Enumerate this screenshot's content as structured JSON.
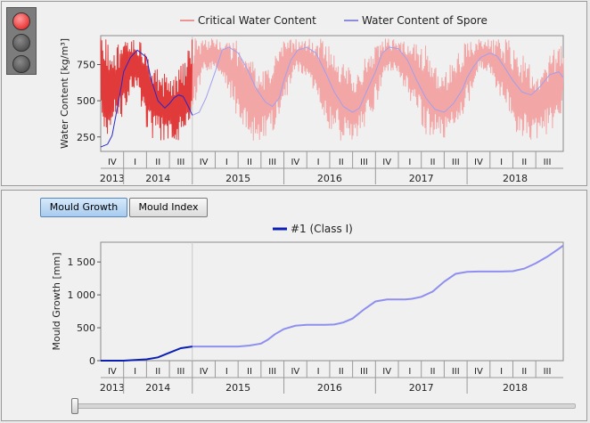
{
  "ui": {
    "tab_growth": "Mould Growth",
    "tab_index": "Mould Index"
  },
  "colors": {
    "critical_active": "#e03a3a",
    "critical_faded": "#f3a6a6",
    "spore_active": "#2828c8",
    "spore_faded": "#a0a0ee",
    "growth_active": "#0b1fb4",
    "growth_faded": "#8f8ff0",
    "grid": "#d4d4d4",
    "plot_bg": "#f0f0f0"
  },
  "chart_data": [
    {
      "type": "line",
      "ylabel": "Water Content [kg/m³]",
      "xlabel": "",
      "ylim": [
        150,
        950
      ],
      "yticks": [
        250,
        500,
        750
      ],
      "grid": false,
      "legend_position": "top-center",
      "x_unit": "quarters since Oct 2013",
      "x_range": [
        0,
        20.2
      ],
      "highlight_until": 4,
      "quarters": [
        "IV",
        "I",
        "II",
        "III",
        "IV",
        "I",
        "II",
        "III",
        "IV",
        "I",
        "II",
        "III",
        "IV",
        "I",
        "II",
        "III",
        "IV",
        "I",
        "II",
        "III"
      ],
      "years": [
        {
          "label": "2013",
          "from": 0,
          "to": 1
        },
        {
          "label": "2014",
          "from": 1,
          "to": 4
        },
        {
          "label": "2015",
          "from": 4,
          "to": 8
        },
        {
          "label": "2016",
          "from": 8,
          "to": 12
        },
        {
          "label": "2017",
          "from": 12,
          "to": 16
        },
        {
          "label": "2018",
          "from": 16,
          "to": 20.2
        }
      ],
      "series": [
        {
          "name": "Critical Water Content",
          "style": "envelope",
          "x": [
            0,
            0.5,
            1,
            1.4,
            1.7,
            2,
            2.3,
            2.7,
            3,
            3.3,
            3.7,
            4,
            4.5,
            5,
            5.5,
            6,
            6.5,
            7,
            7.5,
            8,
            8.5,
            9,
            9.5,
            10,
            10.5,
            11,
            11.5,
            12,
            12.5,
            13,
            13.5,
            14,
            14.5,
            15,
            15.5,
            16,
            16.5,
            17,
            17.5,
            18,
            18.5,
            19,
            19.5,
            20,
            20.2
          ],
          "low": [
            300,
            250,
            400,
            600,
            500,
            300,
            220,
            210,
            210,
            220,
            240,
            400,
            700,
            700,
            600,
            360,
            220,
            220,
            280,
            450,
            700,
            650,
            500,
            300,
            220,
            220,
            300,
            450,
            700,
            680,
            500,
            300,
            220,
            220,
            300,
            450,
            700,
            680,
            500,
            300,
            220,
            220,
            260,
            300,
            400
          ],
          "high": [
            930,
            930,
            930,
            930,
            930,
            930,
            800,
            700,
            650,
            700,
            800,
            930,
            930,
            930,
            930,
            930,
            800,
            700,
            800,
            930,
            930,
            930,
            930,
            930,
            800,
            700,
            800,
            930,
            930,
            930,
            930,
            930,
            800,
            700,
            800,
            930,
            930,
            930,
            930,
            930,
            800,
            700,
            800,
            930,
            930
          ]
        },
        {
          "name": "Water Content of Spore",
          "style": "line",
          "x": [
            0,
            0.3,
            0.5,
            0.7,
            0.9,
            1,
            1.3,
            1.6,
            2,
            2.2,
            2.5,
            2.8,
            3,
            3.2,
            3.4,
            3.6,
            3.8,
            4,
            4.3,
            4.6,
            5,
            5.3,
            5.6,
            6,
            6.4,
            6.8,
            7.2,
            7.5,
            7.8,
            8,
            8.3,
            8.6,
            9,
            9.4,
            9.8,
            10.2,
            10.6,
            11,
            11.3,
            11.6,
            12,
            12.3,
            12.6,
            13,
            13.4,
            13.8,
            14.2,
            14.6,
            15,
            15.4,
            15.8,
            16,
            16.3,
            16.6,
            17,
            17.3,
            17.6,
            18,
            18.4,
            18.8,
            19.2,
            19.6,
            20,
            20.2
          ],
          "y": [
            180,
            200,
            260,
            430,
            600,
            700,
            800,
            850,
            800,
            650,
            500,
            450,
            480,
            520,
            540,
            530,
            470,
            400,
            420,
            520,
            700,
            850,
            870,
            830,
            720,
            580,
            490,
            460,
            520,
            640,
            780,
            850,
            870,
            830,
            700,
            560,
            460,
            420,
            450,
            560,
            700,
            830,
            870,
            860,
            780,
            640,
            520,
            440,
            420,
            480,
            580,
            660,
            740,
            800,
            830,
            810,
            740,
            640,
            560,
            540,
            600,
            680,
            700,
            660
          ]
        }
      ]
    },
    {
      "type": "line",
      "ylabel": "Mould Growth [mm]",
      "xlabel": "",
      "ylim": [
        0,
        1800
      ],
      "yticks": [
        0,
        500,
        1000,
        1500
      ],
      "ytick_labels": [
        "0",
        "500",
        "1 000",
        "1 500"
      ],
      "grid": false,
      "legend_position": "top-center",
      "x_unit": "quarters since Oct 2013",
      "x_range": [
        0,
        20.2
      ],
      "highlight_until": 4,
      "quarters": [
        "IV",
        "I",
        "II",
        "III",
        "IV",
        "I",
        "II",
        "III",
        "IV",
        "I",
        "II",
        "III",
        "IV",
        "I",
        "II",
        "III",
        "IV",
        "I",
        "II",
        "III"
      ],
      "years": [
        {
          "label": "2013",
          "from": 0,
          "to": 1
        },
        {
          "label": "2014",
          "from": 1,
          "to": 4
        },
        {
          "label": "2015",
          "from": 4,
          "to": 8
        },
        {
          "label": "2016",
          "from": 8,
          "to": 12
        },
        {
          "label": "2017",
          "from": 12,
          "to": 16
        },
        {
          "label": "2018",
          "from": 16,
          "to": 20.2
        }
      ],
      "series": [
        {
          "name": "#1 (Class I)",
          "style": "line",
          "x": [
            0,
            1,
            1.5,
            2,
            2.5,
            3,
            3.5,
            4,
            5,
            6,
            6.5,
            7,
            7.3,
            7.6,
            8,
            8.5,
            9,
            9.4,
            9.8,
            10.2,
            10.6,
            11,
            11.5,
            12,
            12.5,
            13,
            13.3,
            13.6,
            14,
            14.5,
            15,
            15.5,
            16,
            16.5,
            17,
            17.5,
            18,
            18.5,
            19,
            19.5,
            20,
            20.2
          ],
          "y": [
            0,
            0,
            10,
            20,
            50,
            120,
            190,
            215,
            215,
            215,
            230,
            260,
            320,
            400,
            480,
            530,
            545,
            545,
            545,
            550,
            580,
            640,
            780,
            900,
            930,
            930,
            930,
            940,
            970,
            1050,
            1200,
            1320,
            1350,
            1355,
            1355,
            1355,
            1360,
            1400,
            1480,
            1580,
            1700,
            1750
          ]
        }
      ]
    }
  ]
}
